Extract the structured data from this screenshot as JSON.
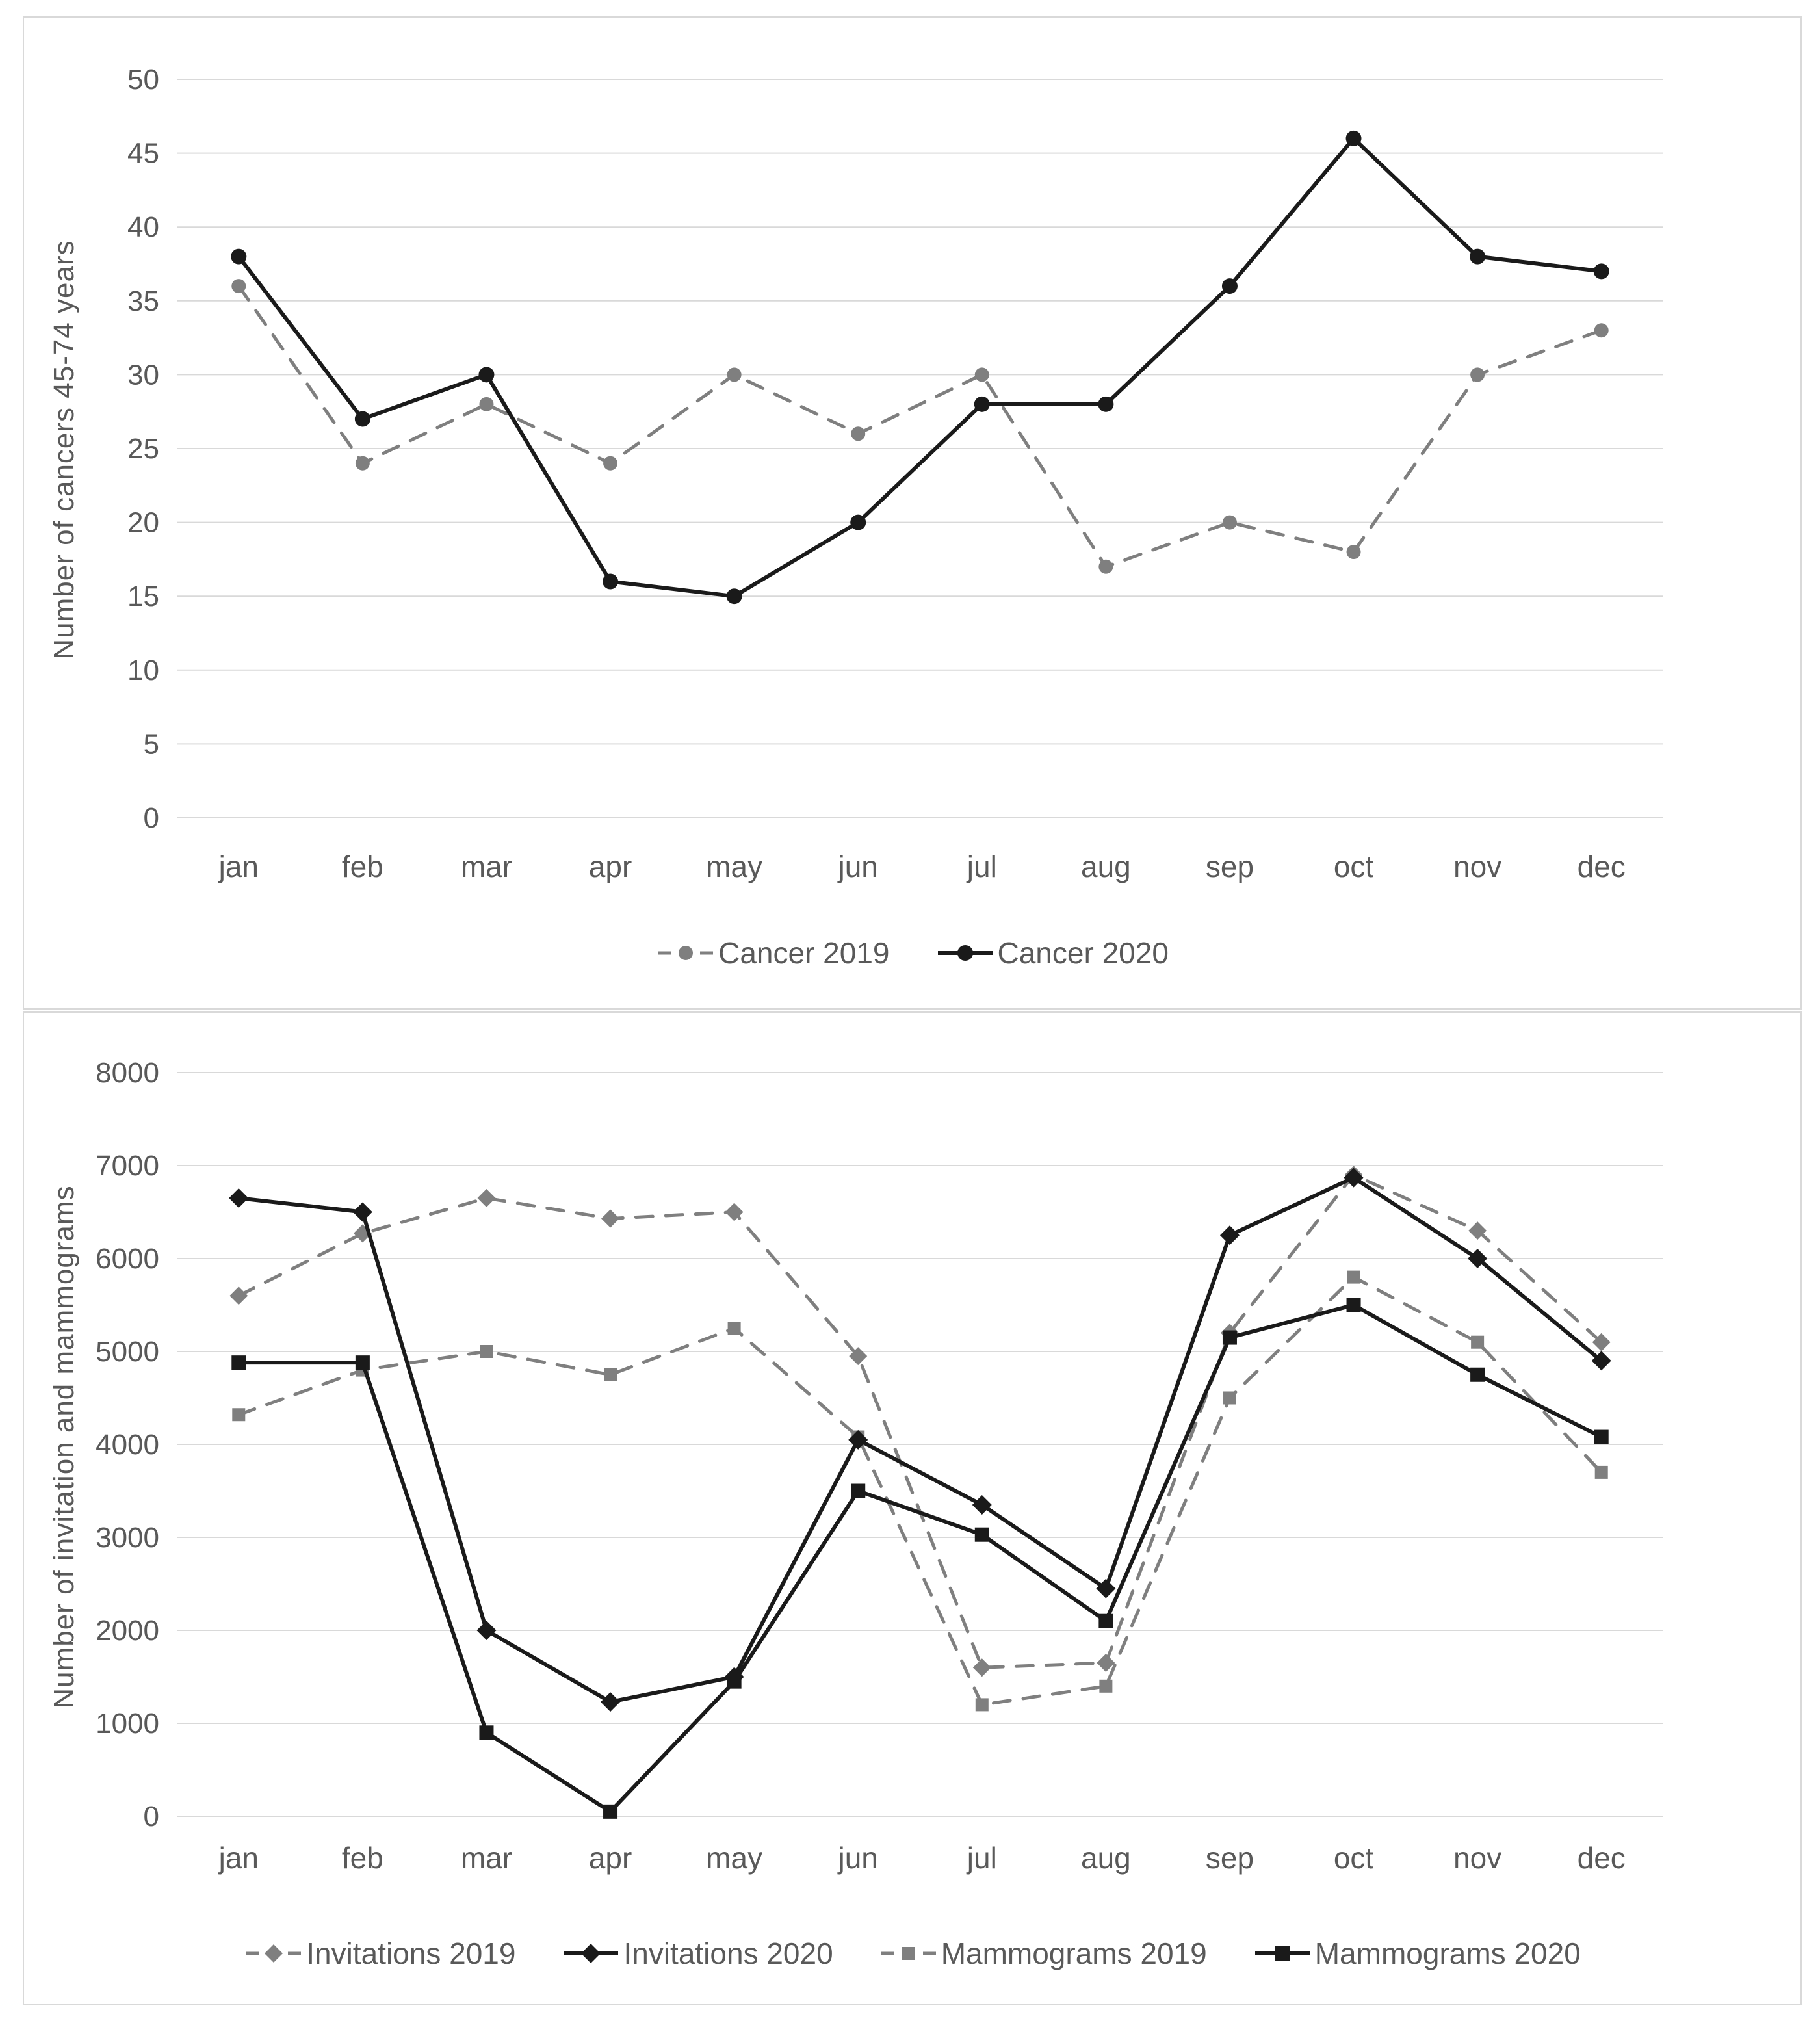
{
  "figure": {
    "background": "#ffffff",
    "panel_border_color": "#d9d9d9"
  },
  "colors": {
    "gridline": "#d9d9d9",
    "axis_text": "#595959",
    "black_series": "#1a1a1a",
    "gray_series": "#7f7f7f"
  },
  "chart_data": [
    {
      "type": "line",
      "title": "",
      "ylabel": "Number of cancers 45-74 years",
      "xlabel": "",
      "categories": [
        "jan",
        "feb",
        "mar",
        "apr",
        "may",
        "jun",
        "jul",
        "aug",
        "sep",
        "oct",
        "nov",
        "dec"
      ],
      "ylim": [
        0,
        50
      ],
      "yticks": [
        0,
        5,
        10,
        15,
        20,
        25,
        30,
        35,
        40,
        45,
        50
      ],
      "grid": true,
      "legend_position": "bottom",
      "series": [
        {
          "name": "Cancer 2019",
          "values": [
            36,
            24,
            28,
            24,
            30,
            26,
            30,
            17,
            20,
            18,
            30,
            33
          ],
          "color": "#7f7f7f",
          "line_style": "dashed",
          "marker": "circle"
        },
        {
          "name": "Cancer 2020",
          "values": [
            38,
            27,
            30,
            16,
            15,
            20,
            28,
            28,
            36,
            46,
            38,
            37
          ],
          "color": "#1a1a1a",
          "line_style": "solid",
          "marker": "circle"
        }
      ]
    },
    {
      "type": "line",
      "title": "",
      "ylabel": "Number of invitation and mammograms",
      "xlabel": "",
      "categories": [
        "jan",
        "feb",
        "mar",
        "apr",
        "may",
        "jun",
        "jul",
        "aug",
        "sep",
        "oct",
        "nov",
        "dec"
      ],
      "ylim": [
        0,
        8000
      ],
      "yticks": [
        0,
        1000,
        2000,
        3000,
        4000,
        5000,
        6000,
        7000,
        8000
      ],
      "grid": true,
      "legend_position": "bottom",
      "series": [
        {
          "name": "Invitations 2019",
          "values": [
            5600,
            6270,
            6650,
            6430,
            6500,
            4950,
            1600,
            1650,
            5200,
            6900,
            6300,
            5100
          ],
          "color": "#7f7f7f",
          "line_style": "dashed",
          "marker": "diamond"
        },
        {
          "name": "Invitations 2020",
          "values": [
            6650,
            6500,
            2000,
            1230,
            1500,
            4050,
            3350,
            2450,
            6250,
            6870,
            6000,
            4900
          ],
          "color": "#1a1a1a",
          "line_style": "solid",
          "marker": "diamond"
        },
        {
          "name": "Mammograms 2019",
          "values": [
            4320,
            4800,
            5000,
            4750,
            5250,
            4080,
            1200,
            1400,
            4500,
            5800,
            5100,
            3700
          ],
          "color": "#7f7f7f",
          "line_style": "dashed",
          "marker": "square"
        },
        {
          "name": "Mammograms 2020",
          "values": [
            4880,
            4880,
            900,
            50,
            1450,
            3500,
            3030,
            2100,
            5150,
            5500,
            4750,
            4080
          ],
          "color": "#1a1a1a",
          "line_style": "solid",
          "marker": "square"
        }
      ]
    }
  ]
}
